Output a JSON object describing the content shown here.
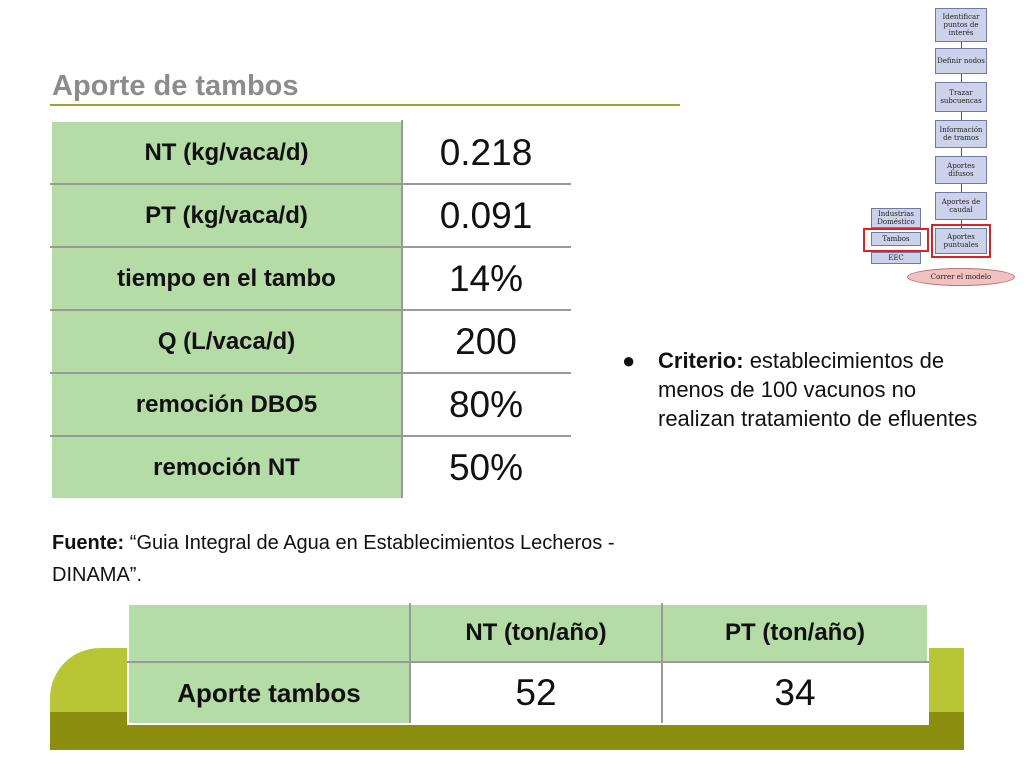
{
  "title": "Aporte de tambos",
  "main_table": [
    {
      "label": "NT (kg/vaca/d)",
      "value": "0.218"
    },
    {
      "label": "PT (kg/vaca/d)",
      "value": "0.091"
    },
    {
      "label": "tiempo en el tambo",
      "value": "14%"
    },
    {
      "label": "Q (L/vaca/d)",
      "value": "200"
    },
    {
      "label": "remoción DBO5",
      "value": "80%"
    },
    {
      "label": "remoción NT",
      "value": "50%"
    }
  ],
  "source": {
    "label": "Fuente:",
    "text": "“Guia Integral de Agua en Establecimientos Lecheros -DINAMA”."
  },
  "criterio": {
    "bullet": "●",
    "label": "Criterio:",
    "text": "establecimientos de menos de 100 vacunos no realizan tratamiento de efluentes"
  },
  "bottom_table": {
    "headers": [
      "",
      "NT (ton/año)",
      "PT (ton/año)"
    ],
    "row_label": "Aporte tambos",
    "values": [
      "52",
      "34"
    ]
  },
  "flowchart": {
    "nodes": [
      "Identificar puntos de interés",
      "Definir nodos",
      "Trazar subcuencas",
      "Información de tramos",
      "Aportes difusos",
      "Aportes de caudal",
      "Aportes puntuales",
      "Industrias Doméstico",
      "Tambos",
      "EEC",
      "Correr el modelo"
    ],
    "highlight_color": "#e02020"
  }
}
